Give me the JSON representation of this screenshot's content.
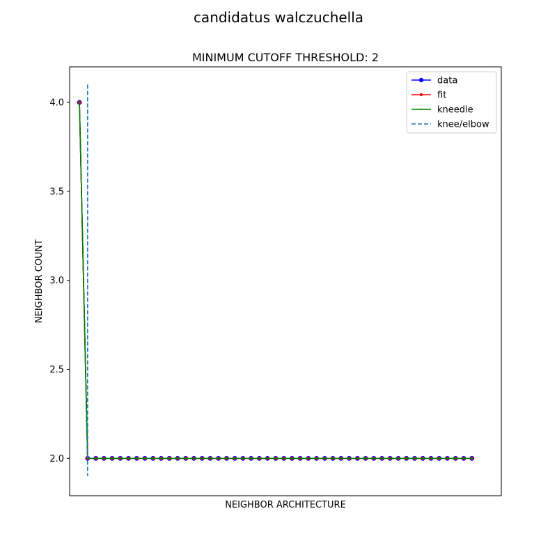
{
  "chart_data": {
    "type": "line",
    "suptitle": "candidatus walczuchella",
    "title": "MINIMUM CUTOFF THRESHOLD: 2",
    "xlabel": "NEIGHBOR ARCHITECTURE",
    "ylabel": "NEIGHBOR COUNT",
    "xlim": [
      -1.2,
      51.6
    ],
    "ylim": [
      1.79,
      4.2
    ],
    "yticks": [
      2.0,
      2.5,
      3.0,
      3.5,
      4.0
    ],
    "ytick_labels": [
      "2.0",
      "2.5",
      "3.0",
      "3.5",
      "4.0"
    ],
    "xticks_shown": false,
    "x": [
      0,
      1,
      2,
      3,
      4,
      5,
      6,
      7,
      8,
      9,
      10,
      11,
      12,
      13,
      14,
      15,
      16,
      17,
      18,
      19,
      20,
      21,
      22,
      23,
      24,
      25,
      26,
      27,
      28,
      29,
      30,
      31,
      32,
      33,
      34,
      35,
      36,
      37,
      38,
      39,
      40,
      41,
      42,
      43,
      44,
      45,
      46,
      47,
      48
    ],
    "series": [
      {
        "name": "data",
        "color": "#0000ff",
        "marker": "circle",
        "values": [
          4,
          2,
          2,
          2,
          2,
          2,
          2,
          2,
          2,
          2,
          2,
          2,
          2,
          2,
          2,
          2,
          2,
          2,
          2,
          2,
          2,
          2,
          2,
          2,
          2,
          2,
          2,
          2,
          2,
          2,
          2,
          2,
          2,
          2,
          2,
          2,
          2,
          2,
          2,
          2,
          2,
          2,
          2,
          2,
          2,
          2,
          2,
          2,
          2
        ]
      },
      {
        "name": "fit",
        "color": "#ff0000",
        "marker": "point",
        "values": [
          4,
          2,
          2,
          2,
          2,
          2,
          2,
          2,
          2,
          2,
          2,
          2,
          2,
          2,
          2,
          2,
          2,
          2,
          2,
          2,
          2,
          2,
          2,
          2,
          2,
          2,
          2,
          2,
          2,
          2,
          2,
          2,
          2,
          2,
          2,
          2,
          2,
          2,
          2,
          2,
          2,
          2,
          2,
          2,
          2,
          2,
          2,
          2,
          2
        ]
      },
      {
        "name": "kneedle",
        "color": "#008000",
        "marker": "pixel",
        "values": [
          4,
          2,
          2,
          2,
          2,
          2,
          2,
          2,
          2,
          2,
          2,
          2,
          2,
          2,
          2,
          2,
          2,
          2,
          2,
          2,
          2,
          2,
          2,
          2,
          2,
          2,
          2,
          2,
          2,
          2,
          2,
          2,
          2,
          2,
          2,
          2,
          2,
          2,
          2,
          2,
          2,
          2,
          2,
          2,
          2,
          2,
          2,
          2,
          2
        ]
      }
    ],
    "knee": {
      "name": "knee/elbow",
      "x": 1,
      "ymin": 1.9,
      "ymax": 4.1,
      "color": "#1f77b4",
      "style": "dashed"
    },
    "legend_position": "top-right"
  }
}
